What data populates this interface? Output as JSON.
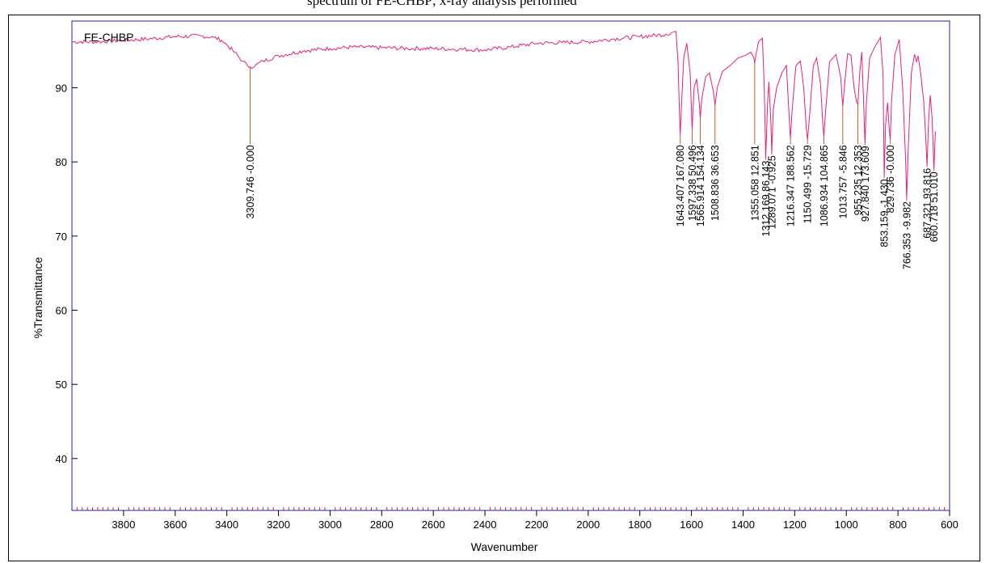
{
  "caption_fragment": "spectrum of FE-CHBP; x-ray analysis performed",
  "chart_data": {
    "type": "line",
    "series_label": "FE-CHBP",
    "xlabel": "Wavenumber",
    "ylabel": "%Transmittance",
    "xlim": [
      4000,
      600
    ],
    "x_reversed": true,
    "ylim": [
      33,
      99
    ],
    "grid": false,
    "x_ticks": [
      3800,
      3600,
      3400,
      3200,
      3000,
      2800,
      2600,
      2400,
      2200,
      2000,
      1800,
      1600,
      1400,
      1200,
      1000,
      800,
      600
    ],
    "y_ticks": [
      40,
      50,
      60,
      70,
      80,
      90
    ],
    "line_color": "#e8207a",
    "peak_line_color": "#d05a28",
    "axis_color": "#1f1fb8",
    "tick_color": "#d82020",
    "spectrum": [
      [
        4000,
        96.2
      ],
      [
        3900,
        96.2
      ],
      [
        3800,
        96.4
      ],
      [
        3700,
        96.6
      ],
      [
        3600,
        96.9
      ],
      [
        3500,
        97.0
      ],
      [
        3450,
        96.8
      ],
      [
        3420,
        96.4
      ],
      [
        3400,
        95.8
      ],
      [
        3370,
        94.8
      ],
      [
        3340,
        93.6
      ],
      [
        3320,
        93.0
      ],
      [
        3309.746,
        92.8
      ],
      [
        3290,
        93.0
      ],
      [
        3260,
        93.6
      ],
      [
        3200,
        94.3
      ],
      [
        3100,
        95.0
      ],
      [
        3000,
        95.3
      ],
      [
        2900,
        95.5
      ],
      [
        2800,
        95.4
      ],
      [
        2700,
        95.3
      ],
      [
        2600,
        95.3
      ],
      [
        2500,
        95.2
      ],
      [
        2400,
        95.1
      ],
      [
        2300,
        95.5
      ],
      [
        2200,
        96.0
      ],
      [
        2100,
        96.1
      ],
      [
        2000,
        96.2
      ],
      [
        1900,
        96.6
      ],
      [
        1800,
        96.9
      ],
      [
        1700,
        97.2
      ],
      [
        1660,
        97.6
      ],
      [
        1652,
        93.5
      ],
      [
        1646,
        86.0
      ],
      [
        1643.407,
        83.6
      ],
      [
        1640,
        86.5
      ],
      [
        1630,
        94.0
      ],
      [
        1618,
        96.0
      ],
      [
        1605,
        92.0
      ],
      [
        1597.338,
        84.4
      ],
      [
        1590,
        90.0
      ],
      [
        1580,
        91.2
      ],
      [
        1570,
        88.0
      ],
      [
        1565.914,
        85.9
      ],
      [
        1560,
        88.5
      ],
      [
        1545,
        91.5
      ],
      [
        1530,
        92.0
      ],
      [
        1515,
        89.5
      ],
      [
        1508.836,
        87.6
      ],
      [
        1500,
        90.0
      ],
      [
        1480,
        92.2
      ],
      [
        1450,
        93.0
      ],
      [
        1420,
        94.0
      ],
      [
        1390,
        94.4
      ],
      [
        1370,
        94.8
      ],
      [
        1358,
        94.0
      ],
      [
        1355.058,
        93.3
      ],
      [
        1350,
        94.5
      ],
      [
        1340,
        96.2
      ],
      [
        1325,
        96.7
      ],
      [
        1318,
        90.0
      ],
      [
        1312.169,
        80.5
      ],
      [
        1305,
        88.0
      ],
      [
        1300,
        90.8
      ],
      [
        1292,
        85.0
      ],
      [
        1289.071,
        81.2
      ],
      [
        1283,
        87.0
      ],
      [
        1270,
        90.0
      ],
      [
        1250,
        92.0
      ],
      [
        1232,
        93.0
      ],
      [
        1220,
        85.0
      ],
      [
        1216.347,
        83.2
      ],
      [
        1210,
        87.0
      ],
      [
        1195,
        93.0
      ],
      [
        1178,
        93.6
      ],
      [
        1165,
        90.0
      ],
      [
        1155,
        84.5
      ],
      [
        1150.499,
        83.0
      ],
      [
        1143,
        86.0
      ],
      [
        1128,
        93.0
      ],
      [
        1115,
        94.0
      ],
      [
        1100,
        90.5
      ],
      [
        1090,
        84.5
      ],
      [
        1086.934,
        83.5
      ],
      [
        1080,
        87.0
      ],
      [
        1065,
        93.5
      ],
      [
        1040,
        94.5
      ],
      [
        1022,
        91.5
      ],
      [
        1013.757,
        87.5
      ],
      [
        1005,
        91.0
      ],
      [
        995,
        94.6
      ],
      [
        982,
        94.4
      ],
      [
        970,
        90.0
      ],
      [
        960,
        88.0
      ],
      [
        955.235,
        87.8
      ],
      [
        948,
        92.0
      ],
      [
        940,
        94.8
      ],
      [
        933,
        88.0
      ],
      [
        927.84,
        82.5
      ],
      [
        922,
        88.0
      ],
      [
        910,
        94.0
      ],
      [
        890,
        95.5
      ],
      [
        868,
        96.8
      ],
      [
        858,
        92.0
      ],
      [
        853.159,
        78.0
      ],
      [
        848,
        85.0
      ],
      [
        840,
        88.0
      ],
      [
        833,
        84.0
      ],
      [
        829.736,
        83.0
      ],
      [
        825,
        88.0
      ],
      [
        812,
        94.5
      ],
      [
        795,
        96.5
      ],
      [
        782,
        90.0
      ],
      [
        770,
        80.0
      ],
      [
        766.353,
        75.0
      ],
      [
        760,
        82.0
      ],
      [
        748,
        92.0
      ],
      [
        736,
        94.5
      ],
      [
        728,
        93.5
      ],
      [
        722,
        94.3
      ],
      [
        712,
        92.0
      ],
      [
        700,
        88.0
      ],
      [
        692,
        83.0
      ],
      [
        687.321,
        79.5
      ],
      [
        682,
        85.0
      ],
      [
        675,
        89.0
      ],
      [
        668,
        86.0
      ],
      [
        660.718,
        79.0
      ],
      [
        655,
        84.0
      ],
      [
        652,
        84.0
      ]
    ],
    "peaks": [
      {
        "x": 3309.746,
        "y": 92.8,
        "label": "3309.746  -0.000"
      },
      {
        "x": 1643.407,
        "y": 83.6,
        "label": "1643.407 167.080"
      },
      {
        "x": 1597.338,
        "y": 84.4,
        "label": "1597.338  50.496"
      },
      {
        "x": 1565.914,
        "y": 85.9,
        "label": "1565.914 154.134"
      },
      {
        "x": 1508.836,
        "y": 87.6,
        "label": "1508.836  36.653"
      },
      {
        "x": 1355.058,
        "y": 93.3,
        "label": "1355.058  12.851"
      },
      {
        "x": 1312.169,
        "y": 80.5,
        "label": "1312.169  86.143"
      },
      {
        "x": 1289.071,
        "y": 81.2,
        "label": "1289.071  -0.925"
      },
      {
        "x": 1216.347,
        "y": 83.2,
        "label": "1216.347 188.562"
      },
      {
        "x": 1150.499,
        "y": 83.0,
        "label": "1150.499 -15.729"
      },
      {
        "x": 1086.934,
        "y": 83.5,
        "label": "1086.934 104.865"
      },
      {
        "x": 1013.757,
        "y": 87.5,
        "label": "1013.757  -5.846"
      },
      {
        "x": 955.235,
        "y": 87.8,
        "label": "955.235  12.353"
      },
      {
        "x": 927.84,
        "y": 82.5,
        "label": "927.840 173.609"
      },
      {
        "x": 853.159,
        "y": 78.0,
        "label": "853.159  -1.430"
      },
      {
        "x": 829.736,
        "y": 83.0,
        "label": "829.736  -0.000"
      },
      {
        "x": 766.353,
        "y": 75.0,
        "label": "766.353  -9.982"
      },
      {
        "x": 687.321,
        "y": 79.5,
        "label": "687.321  93.816"
      },
      {
        "x": 660.718,
        "y": 79.0,
        "label": "660.718  51.010"
      }
    ]
  }
}
